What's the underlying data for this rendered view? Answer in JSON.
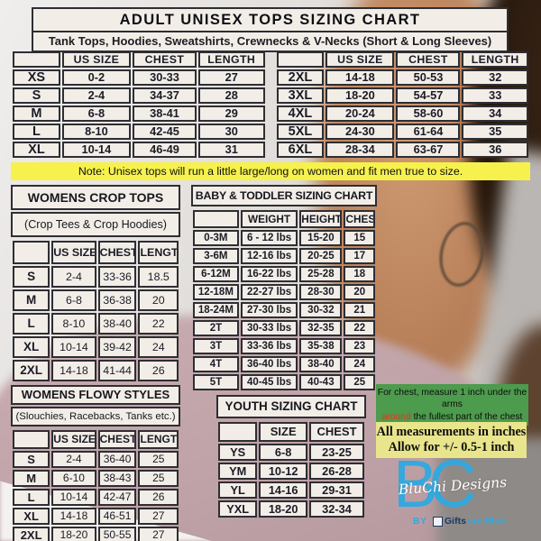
{
  "header": {
    "title": "ADULT UNISEX TOPS SIZING CHART",
    "subtitle": "Tank Tops, Hoodies, Sweatshirts, Crewnecks & V-Necks (Short & Long Sleeves)"
  },
  "adult_left": {
    "columns": [
      "",
      "US SIZE",
      "CHEST",
      "LENGTH"
    ],
    "rows": [
      [
        "XS",
        "0-2",
        "30-33",
        "27"
      ],
      [
        "S",
        "2-4",
        "34-37",
        "28"
      ],
      [
        "M",
        "6-8",
        "38-41",
        "29"
      ],
      [
        "L",
        "8-10",
        "42-45",
        "30"
      ],
      [
        "XL",
        "10-14",
        "46-49",
        "31"
      ]
    ]
  },
  "adult_right": {
    "columns": [
      "",
      "US SIZE",
      "CHEST",
      "LENGTH"
    ],
    "rows": [
      [
        "2XL",
        "14-18",
        "50-53",
        "32"
      ],
      [
        "3XL",
        "18-20",
        "54-57",
        "33"
      ],
      [
        "4XL",
        "20-24",
        "58-60",
        "34"
      ],
      [
        "5XL",
        "24-30",
        "61-64",
        "35"
      ],
      [
        "6XL",
        "28-34",
        "63-67",
        "36"
      ]
    ]
  },
  "note_bar": "Note: Unisex tops will run a little large/long on women and fit men true to size.",
  "crop_tops": {
    "title": "WOMENS CROP TOPS",
    "subtitle": "(Crop Tees & Crop Hoodies)",
    "columns": [
      "",
      "US SIZE",
      "CHEST",
      "LENGTH"
    ],
    "rows": [
      [
        "S",
        "2-4",
        "33-36",
        "18.5"
      ],
      [
        "M",
        "6-8",
        "36-38",
        "20"
      ],
      [
        "L",
        "8-10",
        "38-40",
        "22"
      ],
      [
        "XL",
        "10-14",
        "39-42",
        "24"
      ],
      [
        "2XL",
        "14-18",
        "41-44",
        "26"
      ]
    ]
  },
  "baby_toddler": {
    "title": "BABY & TODDLER SIZING CHART",
    "columns": [
      "",
      "WEIGHT",
      "HEIGHT",
      "CHEST"
    ],
    "rows": [
      [
        "0-3M",
        "6 - 12 lbs",
        "15-20",
        "15"
      ],
      [
        "3-6M",
        "12-16 lbs",
        "20-25",
        "17"
      ],
      [
        "6-12M",
        "16-22 lbs",
        "25-28",
        "18"
      ],
      [
        "12-18M",
        "22-27 lbs",
        "28-30",
        "20"
      ],
      [
        "18-24M",
        "27-30 lbs",
        "30-32",
        "21"
      ],
      [
        "2T",
        "30-33 lbs",
        "32-35",
        "22"
      ],
      [
        "3T",
        "33-36 lbs",
        "35-38",
        "23"
      ],
      [
        "4T",
        "36-40 lbs",
        "38-40",
        "24"
      ],
      [
        "5T",
        "40-45 lbs",
        "40-43",
        "25"
      ]
    ]
  },
  "flowy": {
    "title": "WOMENS FLOWY STYLES",
    "subtitle": "(Slouchies, Racebacks, Tanks etc.)",
    "columns": [
      "",
      "US SIZE",
      "CHEST",
      "LENGTH"
    ],
    "rows": [
      [
        "S",
        "2-4",
        "36-40",
        "25"
      ],
      [
        "M",
        "6-10",
        "38-43",
        "25"
      ],
      [
        "L",
        "10-14",
        "42-47",
        "26"
      ],
      [
        "XL",
        "14-18",
        "46-51",
        "27"
      ],
      [
        "2XL",
        "18-20",
        "50-55",
        "27"
      ]
    ]
  },
  "youth": {
    "title": "YOUTH SIZING CHART",
    "columns": [
      "",
      "SIZE",
      "CHEST"
    ],
    "rows": [
      [
        "YS",
        "6-8",
        "23-25"
      ],
      [
        "YM",
        "10-12",
        "26-28"
      ],
      [
        "YL",
        "14-16",
        "29-31"
      ],
      [
        "YXL",
        "18-20",
        "32-34"
      ]
    ]
  },
  "chest_note": {
    "line1": "For chest, measure 1 inch under the arms",
    "highlight": "around",
    "line2_rest": " the fullest part of the chest"
  },
  "measure_note": {
    "line1": "All measurements in inches",
    "line2": "Allow for +/- 0.5-1 inch"
  },
  "logo": {
    "monogram": "BC",
    "script": "BluChi Designs",
    "by": "BY",
    "brand_dark": "Gifts",
    "brand_blue": "are Blue"
  },
  "colors": {
    "note-bar-bg": "#f6f14d",
    "green-note-bg": "#4d9b4d",
    "yellow-note-bg": "#e9e58c",
    "red-accent": "#e8321e",
    "logo-blue": "#2fa9e1",
    "navy": "#1c3a66",
    "table-bg": "#f2eee7",
    "border-dark": "#2e2e33"
  }
}
